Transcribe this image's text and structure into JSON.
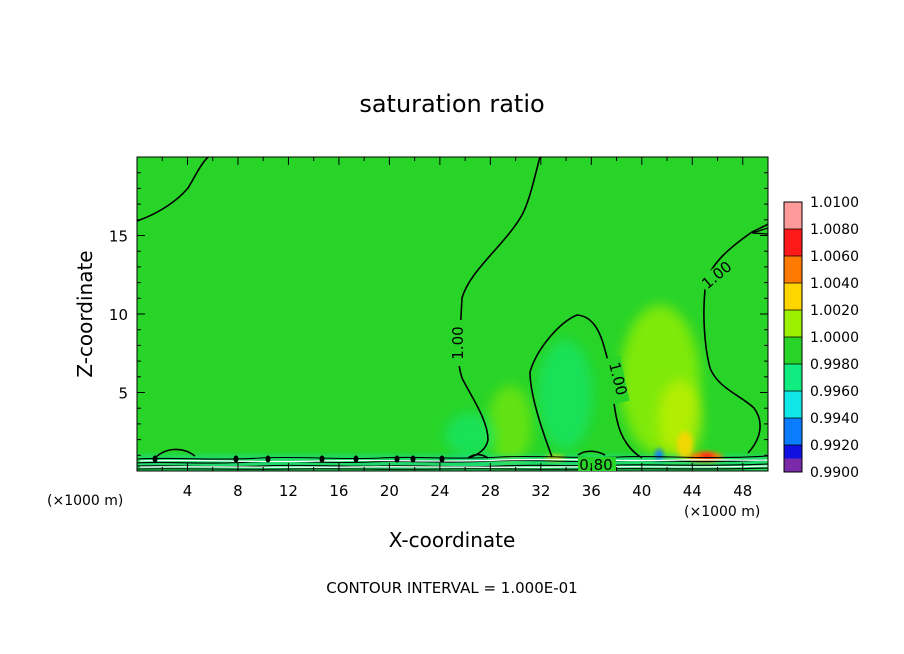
{
  "chart_data": {
    "type": "heatmap",
    "title": "saturation ratio",
    "xlabel": "X-coordinate",
    "ylabel": "Z-coordinate",
    "x_unit": "(×1000 m)",
    "x_unit_right": "(×1000 m)",
    "xlim": [
      0,
      50
    ],
    "ylim": [
      0,
      20
    ],
    "x_ticks": [
      "4",
      "8",
      "12",
      "16",
      "20",
      "24",
      "28",
      "32",
      "36",
      "40",
      "44",
      "48"
    ],
    "y_ticks": [
      "5",
      "10",
      "15"
    ],
    "footnote": "CONTOUR INTERVAL = 1.000E-01",
    "contour_labels": [
      "1.00",
      "1.00",
      "1.00",
      "0.80"
    ],
    "colorbar": {
      "labels": [
        "1.0100",
        "1.0080",
        "1.0060",
        "1.0040",
        "1.0020",
        "1.0000",
        "0.9980",
        "0.9960",
        "0.9940",
        "0.9920",
        "0.9900"
      ],
      "colors": [
        "#ff9a9a",
        "#ff1a1a",
        "#ff7a00",
        "#ffd500",
        "#9df000",
        "#28d428",
        "#11ec80",
        "#10e8e8",
        "#0a7cff",
        "#1010e0",
        "#7a2aa8"
      ]
    },
    "background_value": 1.0,
    "grid": false
  }
}
